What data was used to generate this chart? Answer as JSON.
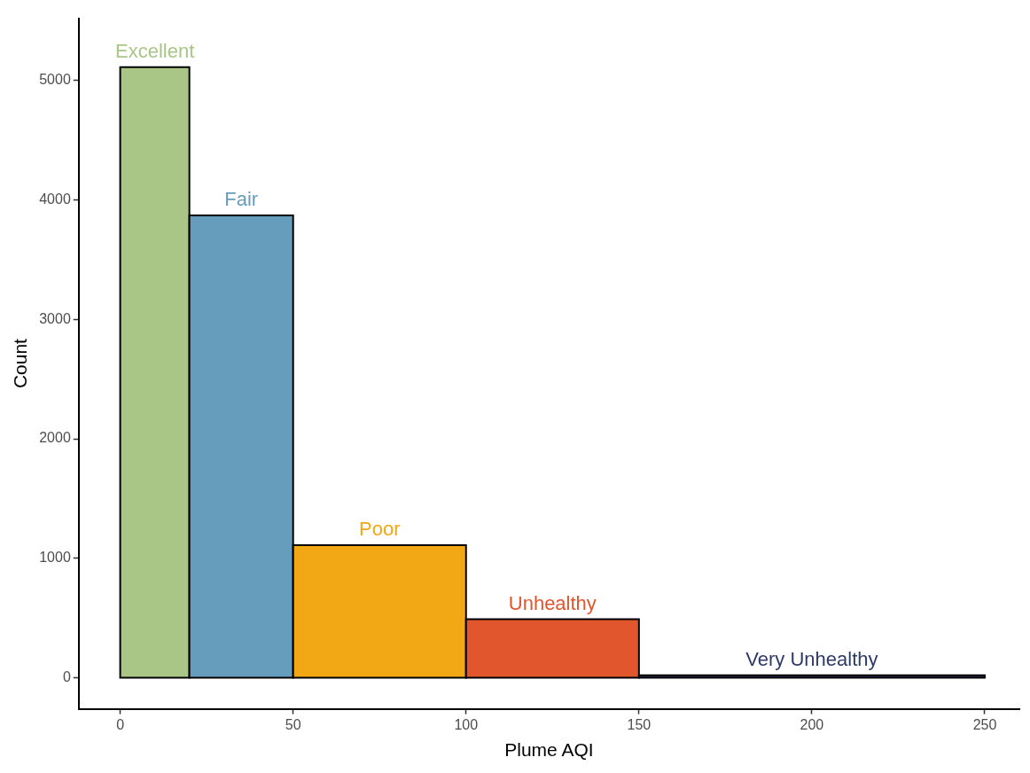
{
  "chart_data": {
    "type": "histogram",
    "xlabel": "Plume AQI",
    "ylabel": "Count",
    "bins": [
      0,
      20,
      50,
      100,
      150,
      250
    ],
    "values": [
      5110,
      3870,
      1110,
      490,
      20
    ],
    "colors": [
      "#a9c686",
      "#669dbd",
      "#f2a815",
      "#e2562e",
      "#2e3a68"
    ],
    "xlim": [
      -12,
      260
    ],
    "xticks": [
      0,
      50,
      100,
      150,
      200,
      250
    ],
    "ylim": [
      -260,
      5520
    ],
    "yticks": [
      0,
      1000,
      2000,
      3000,
      4000,
      5000
    ],
    "annotations": [
      {
        "text": "Excellent",
        "x": 10,
        "y": 5110
      },
      {
        "text": "Fair",
        "x": 35,
        "y": 3870
      },
      {
        "text": "Poor",
        "x": 75,
        "y": 1110
      },
      {
        "text": "Unhealthy",
        "x": 125,
        "y": 490
      },
      {
        "text": "Very Unhealthy",
        "x": 200,
        "y": 20
      }
    ]
  }
}
